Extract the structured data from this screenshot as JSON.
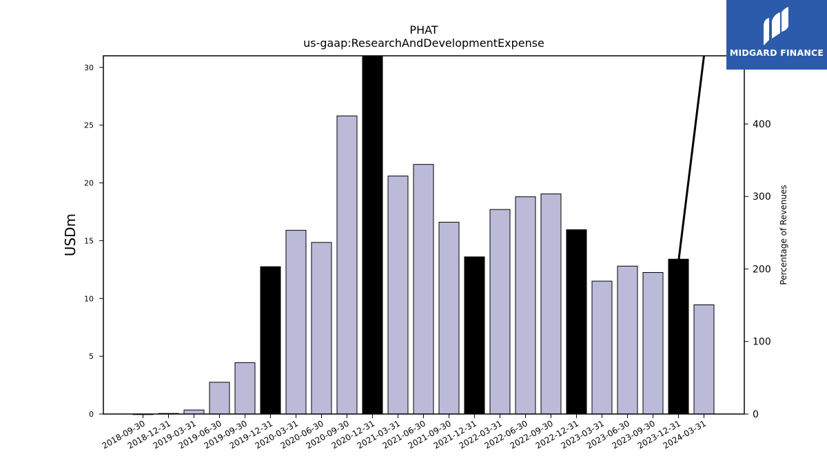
{
  "logo": {
    "text": "MIDGARD FINANCE",
    "background": "#2d5bab",
    "icon": "midgard-mark-icon"
  },
  "chart_data": {
    "type": "bar",
    "title": "PHAT",
    "subtitle": "us-gaap:ResearchAndDevelopmentExpense",
    "ylabel": "USDm",
    "y2label": "Percentage of Revenues",
    "ylim": [
      0,
      31
    ],
    "y2lim": [
      0,
      494
    ],
    "yticks": [
      0,
      5,
      10,
      15,
      20,
      25,
      30
    ],
    "y2ticks": [
      0,
      100,
      200,
      300,
      400
    ],
    "colors": {
      "quarter": "#bcbad9",
      "year_end": "#000000",
      "line": "#000000"
    },
    "categories": [
      "2018-09-30",
      "2018-12-31",
      "2019-03-31",
      "2019-06-30",
      "2019-09-30",
      "2019-12-31",
      "2020-03-31",
      "2020-06-30",
      "2020-09-30",
      "2020-12-31",
      "2021-03-31",
      "2021-06-30",
      "2021-09-30",
      "2021-12-31",
      "2022-03-31",
      "2022-06-30",
      "2022-09-30",
      "2022-12-31",
      "2023-03-31",
      "2023-06-30",
      "2023-09-30",
      "2023-12-31",
      "2024-03-31"
    ],
    "series": [
      {
        "kind": "bar",
        "values": [
          0,
          0.05,
          0.35,
          2.75,
          4.45,
          12.75,
          15.9,
          14.85,
          25.8,
          31.0,
          20.6,
          21.6,
          16.6,
          13.6,
          17.7,
          18.8,
          19.05,
          15.95,
          11.5,
          12.8,
          12.25,
          13.4,
          9.45
        ],
        "year_end": [
          false,
          false,
          false,
          false,
          false,
          true,
          false,
          false,
          false,
          true,
          false,
          false,
          false,
          true,
          false,
          false,
          false,
          true,
          false,
          false,
          false,
          true,
          false
        ]
      },
      {
        "kind": "line",
        "axis": "right",
        "points": [
          {
            "x": "2023-12-31",
            "y": 210
          },
          {
            "x": "2024-03-31",
            "y": 494
          }
        ]
      }
    ]
  }
}
